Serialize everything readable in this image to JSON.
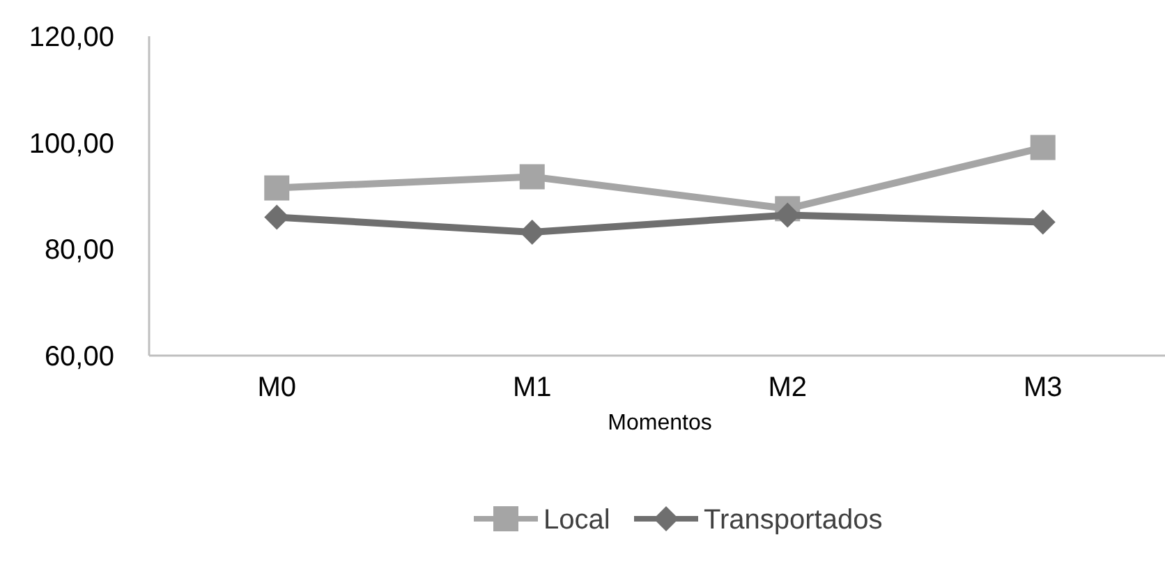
{
  "chart_data": {
    "type": "line",
    "xlabel": "Momentos",
    "categories": [
      "M0",
      "M1",
      "M2",
      "M3"
    ],
    "series": [
      {
        "name": "Local",
        "color": "#a5a5a5",
        "marker": "square",
        "values": [
          91.5,
          93.6,
          87.6,
          99.1
        ]
      },
      {
        "name": "Transportados",
        "color": "#6f6f6f",
        "marker": "diamond",
        "values": [
          86.0,
          83.2,
          86.4,
          85.1
        ]
      }
    ],
    "ylim": [
      60,
      120
    ],
    "yticks": [
      {
        "value": 60,
        "label": "60,00"
      },
      {
        "value": 80,
        "label": "80,00"
      },
      {
        "value": 100,
        "label": "100,00"
      },
      {
        "value": 120,
        "label": "120,00"
      }
    ],
    "grid": false,
    "legend": "bottom"
  }
}
